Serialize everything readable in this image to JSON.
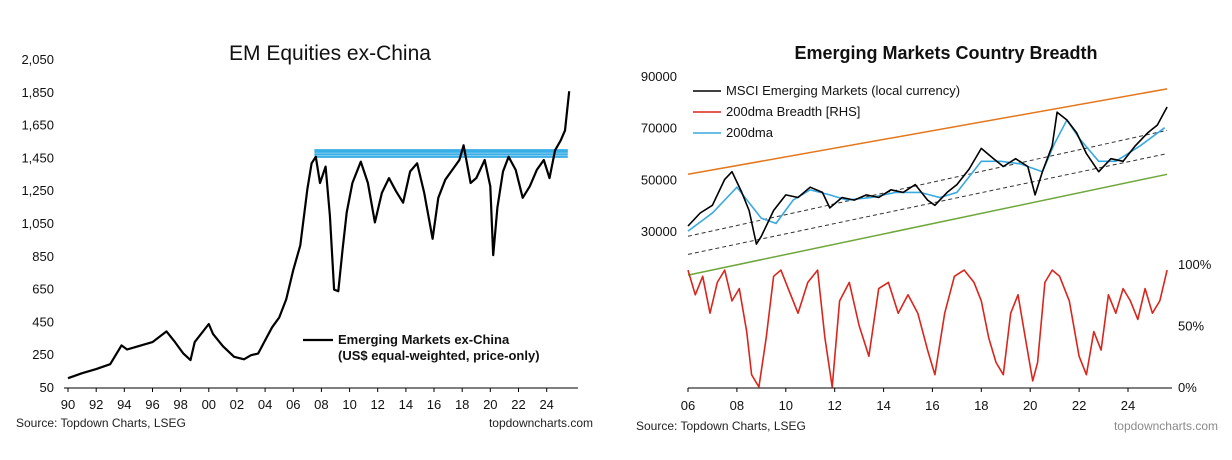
{
  "left_panel": {
    "source": "Source: Topdown Charts, LSEG",
    "website": "topdowncharts.com"
  },
  "right_panel": {
    "source": "Source: Topdown Charts, LSEG",
    "website": "topdowncharts.com"
  },
  "chart_data": [
    {
      "type": "line",
      "title": "EM Equities ex-China",
      "xlabel": "",
      "ylabel": "",
      "x_tick_labels": [
        "90",
        "92",
        "94",
        "96",
        "98",
        "00",
        "02",
        "04",
        "06",
        "08",
        "10",
        "12",
        "14",
        "16",
        "18",
        "20",
        "22",
        "24"
      ],
      "y_tick_labels": [
        "2,050",
        "1,850",
        "1,650",
        "1,450",
        "1,250",
        "1,050",
        "850",
        "650",
        "450",
        "250",
        "50"
      ],
      "ylim": [
        50,
        2050
      ],
      "xlim": [
        1990,
        2025.8
      ],
      "grid": false,
      "legend_position": "lower-right",
      "legend_lines": [
        "Emerging Markets ex-China",
        "(US$ equal-weighted, price-only)"
      ],
      "series": [
        {
          "name": "Emerging Markets ex-China (US$ equal-weighted, price-only)",
          "color": "#000000",
          "x": [
            1990.0,
            1991.0,
            1992.0,
            1993.0,
            1993.8,
            1994.2,
            1995.0,
            1996.0,
            1997.0,
            1997.6,
            1998.2,
            1998.7,
            1999.0,
            2000.0,
            2000.3,
            2001.0,
            2001.8,
            2002.5,
            2003.0,
            2003.5,
            2004.0,
            2004.5,
            2005.0,
            2005.5,
            2006.0,
            2006.5,
            2007.0,
            2007.3,
            2007.6,
            2007.9,
            2008.3,
            2008.6,
            2008.9,
            2009.2,
            2009.5,
            2009.8,
            2010.2,
            2010.8,
            2011.3,
            2011.8,
            2012.3,
            2012.8,
            2013.3,
            2013.8,
            2014.3,
            2014.8,
            2015.3,
            2015.9,
            2016.3,
            2016.8,
            2017.3,
            2017.8,
            2018.1,
            2018.6,
            2019.0,
            2019.6,
            2020.0,
            2020.2,
            2020.5,
            2020.9,
            2021.3,
            2021.8,
            2022.3,
            2022.8,
            2023.3,
            2023.8,
            2024.2,
            2024.6,
            2025.0,
            2025.3,
            2025.5,
            2025.6
          ],
          "values": [
            110,
            140,
            165,
            195,
            310,
            285,
            305,
            330,
            395,
            330,
            260,
            220,
            330,
            440,
            380,
            305,
            240,
            225,
            250,
            260,
            340,
            420,
            480,
            590,
            770,
            920,
            1260,
            1420,
            1460,
            1300,
            1400,
            1100,
            650,
            640,
            890,
            1120,
            1300,
            1430,
            1300,
            1060,
            1240,
            1330,
            1250,
            1180,
            1370,
            1420,
            1240,
            960,
            1210,
            1320,
            1380,
            1440,
            1530,
            1300,
            1330,
            1440,
            1280,
            860,
            1150,
            1370,
            1460,
            1380,
            1210,
            1280,
            1380,
            1440,
            1330,
            1500,
            1560,
            1620,
            1780,
            1860
          ]
        }
      ],
      "annotations": [
        {
          "type": "horizontal_band",
          "y_values": [
            1460,
            1475,
            1490,
            1500
          ],
          "x_start": 2007.5,
          "x_end": 2025.5,
          "color": "#39aee6"
        }
      ]
    },
    {
      "type": "line",
      "title": "Emerging Markets Country Breadth",
      "xlabel": "",
      "ylabel": "",
      "x_tick_labels": [
        "06",
        "08",
        "10",
        "12",
        "14",
        "16",
        "18",
        "20",
        "22",
        "24"
      ],
      "xlim": [
        2006,
        2025.8
      ],
      "upper_panel": {
        "y_tick_labels": [
          "90000",
          "70000",
          "50000",
          "30000"
        ],
        "ylim": [
          20000,
          90000
        ],
        "legend_position": "top-left",
        "series": [
          {
            "name": "MSCI Emerging Markets (local currency)",
            "color": "#000000",
            "x": [
              2006.0,
              2006.5,
              2007.0,
              2007.5,
              2007.8,
              2008.2,
              2008.5,
              2008.8,
              2009.0,
              2009.5,
              2010.0,
              2010.5,
              2011.0,
              2011.5,
              2011.8,
              2012.3,
              2012.8,
              2013.3,
              2013.8,
              2014.3,
              2014.8,
              2015.3,
              2015.8,
              2016.1,
              2016.6,
              2017.0,
              2017.5,
              2018.0,
              2018.5,
              2018.9,
              2019.4,
              2019.9,
              2020.2,
              2020.5,
              2020.9,
              2021.1,
              2021.5,
              2021.9,
              2022.3,
              2022.8,
              2023.3,
              2023.8,
              2024.3,
              2024.8,
              2025.2,
              2025.6
            ],
            "values": [
              32000,
              37000,
              40000,
              50000,
              53000,
              45000,
              38000,
              25000,
              28000,
              38000,
              44000,
              43000,
              47000,
              45000,
              39000,
              43000,
              42000,
              44000,
              43000,
              46000,
              45000,
              48000,
              42000,
              40000,
              45000,
              48000,
              54000,
              62000,
              58000,
              55000,
              58000,
              55000,
              44000,
              53000,
              63000,
              76000,
              73000,
              68000,
              60000,
              53000,
              58000,
              57000,
              63000,
              68000,
              71000,
              78000
            ]
          },
          {
            "name": "200dma",
            "color": "#39a9e0",
            "x": [
              2006.0,
              2007.0,
              2008.0,
              2009.0,
              2009.6,
              2010.3,
              2011.0,
              2011.8,
              2012.5,
              2013.5,
              2014.5,
              2015.5,
              2016.3,
              2017.0,
              2018.0,
              2018.8,
              2019.6,
              2020.5,
              2021.0,
              2021.5,
              2022.0,
              2022.8,
              2023.5,
              2024.5,
              2025.5
            ],
            "values": [
              30000,
              37000,
              47000,
              35000,
              33000,
              42000,
              46000,
              44000,
              42000,
              43000,
              45000,
              45000,
              43000,
              45000,
              57000,
              57000,
              56000,
              53000,
              64000,
              73000,
              66000,
              57000,
              57000,
              63000,
              70000
            ]
          }
        ],
        "trend_lines": [
          {
            "color": "#e4761b",
            "style": "solid",
            "from": [
              2006.0,
              52000
            ],
            "to": [
              2025.6,
              85000
            ]
          },
          {
            "color": "#333333",
            "style": "dashed",
            "from": [
              2006.0,
              28000
            ],
            "to": [
              2025.6,
              69000
            ]
          },
          {
            "color": "#333333",
            "style": "dashed",
            "from": [
              2006.0,
              21000
            ],
            "to": [
              2025.6,
              60000
            ]
          },
          {
            "color": "#6fa63a",
            "style": "solid",
            "from": [
              2006.0,
              13000
            ],
            "to": [
              2025.6,
              52000
            ]
          }
        ]
      },
      "lower_panel": {
        "y_tick_labels": [
          "100%",
          "50%",
          "0%"
        ],
        "ylim": [
          0,
          100
        ],
        "series": [
          {
            "name": "200dma Breadth [RHS]",
            "color": "#d9261c",
            "x": [
              2006.0,
              2006.3,
              2006.6,
              2006.9,
              2007.2,
              2007.5,
              2007.8,
              2008.1,
              2008.4,
              2008.6,
              2008.9,
              2009.2,
              2009.5,
              2009.8,
              2010.1,
              2010.5,
              2010.9,
              2011.3,
              2011.6,
              2011.9,
              2012.2,
              2012.6,
              2013.0,
              2013.4,
              2013.8,
              2014.2,
              2014.6,
              2015.0,
              2015.4,
              2015.8,
              2016.1,
              2016.5,
              2016.9,
              2017.3,
              2017.7,
              2018.0,
              2018.3,
              2018.6,
              2018.9,
              2019.2,
              2019.5,
              2019.8,
              2020.1,
              2020.3,
              2020.6,
              2020.9,
              2021.2,
              2021.6,
              2022.0,
              2022.3,
              2022.6,
              2022.9,
              2023.2,
              2023.5,
              2023.8,
              2024.1,
              2024.4,
              2024.7,
              2025.0,
              2025.3,
              2025.6
            ],
            "values": [
              95,
              75,
              90,
              60,
              85,
              95,
              70,
              80,
              45,
              10,
              0,
              40,
              90,
              95,
              80,
              60,
              85,
              95,
              40,
              0,
              70,
              85,
              50,
              25,
              80,
              85,
              60,
              75,
              60,
              30,
              10,
              60,
              90,
              95,
              85,
              70,
              40,
              20,
              10,
              60,
              75,
              40,
              5,
              20,
              85,
              95,
              90,
              70,
              25,
              10,
              45,
              30,
              75,
              60,
              80,
              70,
              55,
              80,
              60,
              70,
              95
            ]
          }
        ]
      }
    }
  ]
}
